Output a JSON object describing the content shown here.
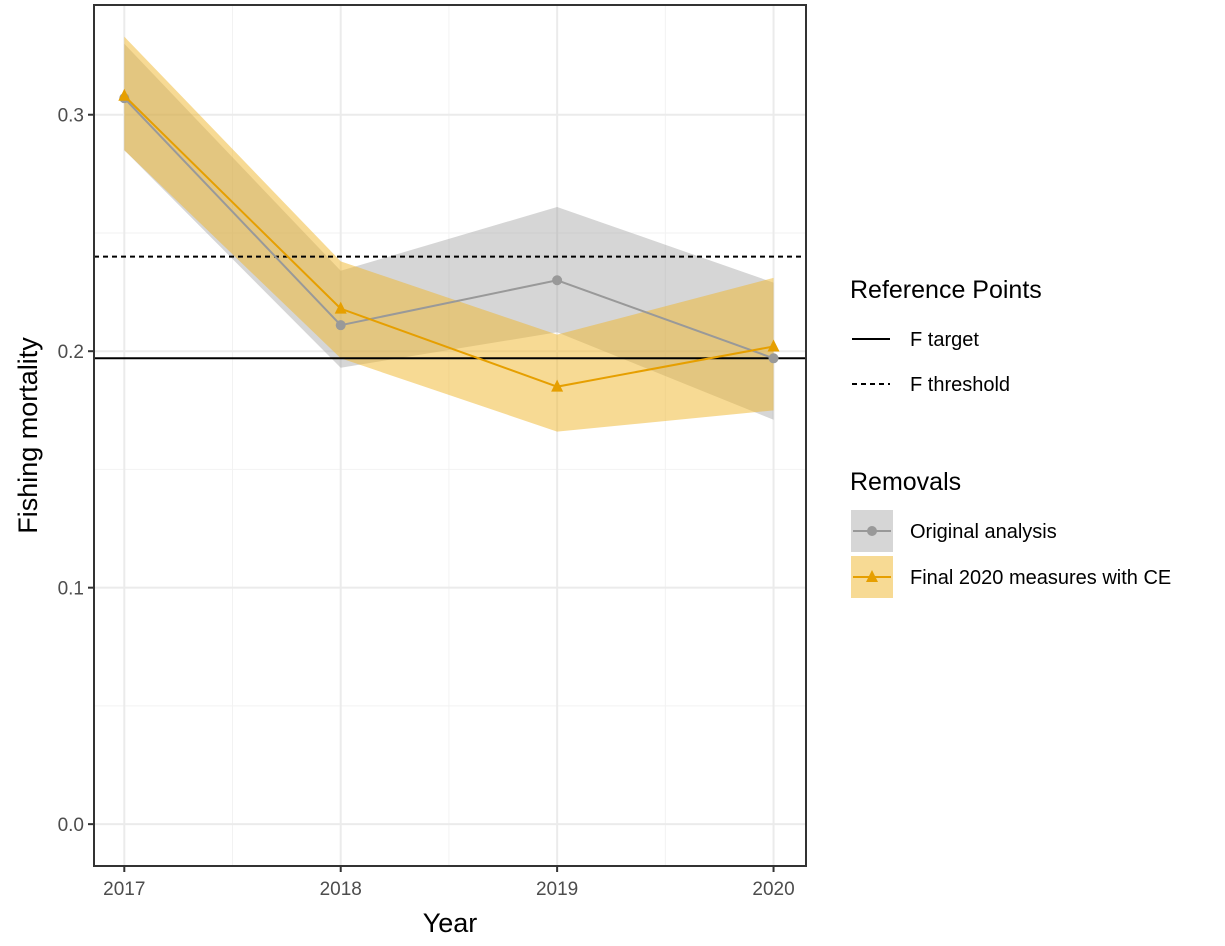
{
  "chart_data": {
    "type": "line",
    "xlabel": "Year",
    "ylabel": "Fishing mortality",
    "x": [
      2017,
      2018,
      2019,
      2020
    ],
    "x_ticks": [
      "2017",
      "2018",
      "2019",
      "2020"
    ],
    "y_ticks": [
      "0.0",
      "0.1",
      "0.2",
      "0.3"
    ],
    "xlim": [
      2016.86,
      2020.15
    ],
    "ylim": [
      -0.0177,
      0.3464
    ],
    "grid": true,
    "series": [
      {
        "name": "Original analysis",
        "values": [
          0.307,
          0.211,
          0.23,
          0.197
        ],
        "lower": [
          0.285,
          0.193,
          0.208,
          0.171
        ],
        "upper": [
          0.33,
          0.234,
          0.261,
          0.229
        ],
        "color": "#999999",
        "fill": "#999999",
        "marker": "circle"
      },
      {
        "name": "Final 2020 measures with CE",
        "values": [
          0.308,
          0.218,
          0.185,
          0.202
        ],
        "lower": [
          0.285,
          0.197,
          0.166,
          0.175
        ],
        "upper": [
          0.333,
          0.238,
          0.207,
          0.231
        ],
        "color": "#E69F00",
        "fill": "#F0B62A",
        "marker": "triangle"
      }
    ],
    "reference_lines": [
      {
        "name": "F target",
        "value": 0.197,
        "style": "solid"
      },
      {
        "name": "F threshold",
        "value": 0.24,
        "style": "dashed"
      }
    ],
    "legend": {
      "placement": "right",
      "groups": [
        {
          "title": "Reference Points",
          "entries": [
            "F target",
            "F threshold"
          ]
        },
        {
          "title": "Removals",
          "entries": [
            "Original analysis",
            "Final 2020 measures with CE"
          ]
        }
      ]
    }
  }
}
